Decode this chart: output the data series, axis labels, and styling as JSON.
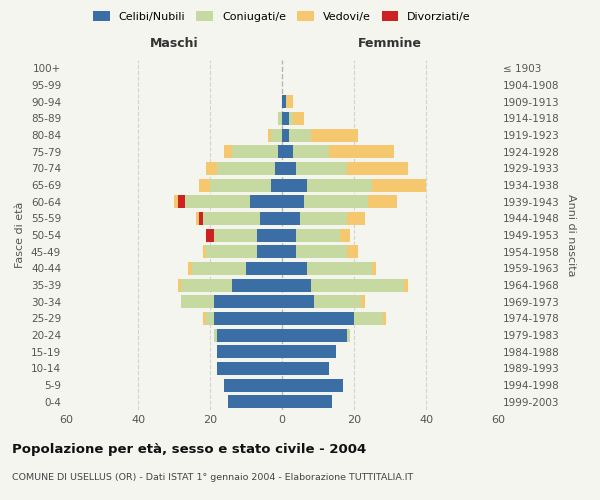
{
  "age_groups": [
    "0-4",
    "5-9",
    "10-14",
    "15-19",
    "20-24",
    "25-29",
    "30-34",
    "35-39",
    "40-44",
    "45-49",
    "50-54",
    "55-59",
    "60-64",
    "65-69",
    "70-74",
    "75-79",
    "80-84",
    "85-89",
    "90-94",
    "95-99",
    "100+"
  ],
  "birth_years": [
    "1999-2003",
    "1994-1998",
    "1989-1993",
    "1984-1988",
    "1979-1983",
    "1974-1978",
    "1969-1973",
    "1964-1968",
    "1959-1963",
    "1954-1958",
    "1949-1953",
    "1944-1948",
    "1939-1943",
    "1934-1938",
    "1929-1933",
    "1924-1928",
    "1919-1923",
    "1914-1918",
    "1909-1913",
    "1904-1908",
    "≤ 1903"
  ],
  "male": {
    "celibi": [
      15,
      16,
      18,
      18,
      18,
      19,
      19,
      14,
      10,
      7,
      7,
      6,
      9,
      3,
      2,
      1,
      0,
      0,
      0,
      0,
      0
    ],
    "coniugati": [
      0,
      0,
      0,
      0,
      1,
      2,
      9,
      14,
      15,
      14,
      12,
      16,
      18,
      17,
      16,
      13,
      3,
      1,
      0,
      0,
      0
    ],
    "vedovi": [
      0,
      0,
      0,
      0,
      0,
      1,
      0,
      1,
      1,
      1,
      0,
      1,
      1,
      3,
      3,
      2,
      1,
      0,
      0,
      0,
      0
    ],
    "divorziati": [
      0,
      0,
      0,
      0,
      0,
      0,
      0,
      0,
      0,
      0,
      2,
      1,
      2,
      0,
      0,
      0,
      0,
      0,
      0,
      0,
      0
    ]
  },
  "female": {
    "nubili": [
      14,
      17,
      13,
      15,
      18,
      20,
      9,
      8,
      7,
      4,
      4,
      5,
      6,
      7,
      4,
      3,
      2,
      2,
      1,
      0,
      0
    ],
    "coniugate": [
      0,
      0,
      0,
      0,
      1,
      8,
      13,
      26,
      18,
      14,
      12,
      13,
      18,
      18,
      14,
      10,
      6,
      1,
      0,
      0,
      0
    ],
    "vedove": [
      0,
      0,
      0,
      0,
      0,
      1,
      1,
      1,
      1,
      3,
      3,
      5,
      8,
      15,
      17,
      18,
      13,
      3,
      2,
      0,
      0
    ],
    "divorziate": [
      0,
      0,
      0,
      0,
      0,
      0,
      0,
      0,
      0,
      0,
      0,
      0,
      0,
      0,
      0,
      0,
      0,
      0,
      0,
      0,
      0
    ]
  },
  "color_celibi": "#3a6ea5",
  "color_coniugati": "#c5d9a0",
  "color_vedovi": "#f5c76e",
  "color_divorziati": "#cc2222",
  "xlim": 60,
  "title": "Popolazione per età, sesso e stato civile - 2004",
  "subtitle": "COMUNE DI USELLUS (OR) - Dati ISTAT 1° gennaio 2004 - Elaborazione TUTTITALIA.IT",
  "xlabel_left": "Maschi",
  "xlabel_right": "Femmine",
  "ylabel": "Fasce di età",
  "ylabel_right": "Anni di nascita",
  "legend_labels": [
    "Celibi/Nubili",
    "Coniugati/e",
    "Vedovi/e",
    "Divorziati/e"
  ],
  "bg_color": "#f5f5f0",
  "grid_color": "#cccccc",
  "label_color": "#555555",
  "title_color": "#111111"
}
